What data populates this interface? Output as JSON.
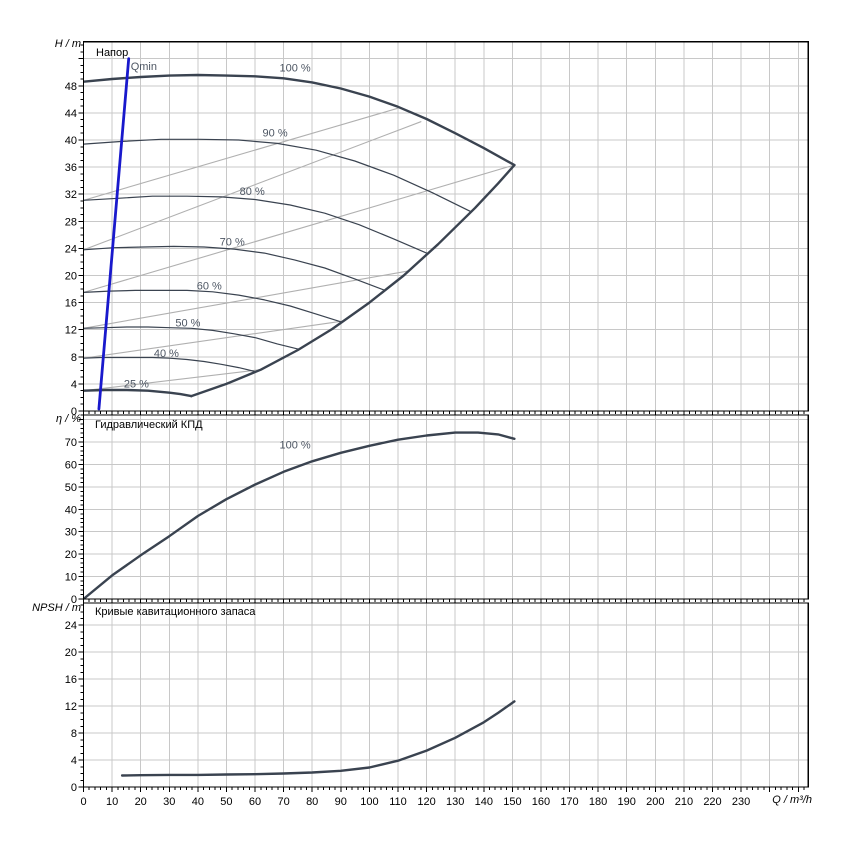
{
  "colors": {
    "curve": "#3a4350",
    "grid": "#c8c8c8",
    "iso_line": "#b0b0b0",
    "qmin": "#1919cc",
    "axis": "#000000",
    "label_text": "#4d5663"
  },
  "axes": {
    "x": {
      "label": "Q / m³/h",
      "ticks": [
        0,
        10,
        20,
        30,
        40,
        50,
        60,
        70,
        80,
        90,
        100,
        110,
        120,
        130,
        140,
        150,
        160,
        170,
        180,
        190,
        200,
        210,
        220,
        230
      ],
      "minor_step": 2
    },
    "head_y": {
      "label": "H / m",
      "ticks": [
        0,
        4,
        8,
        12,
        16,
        20,
        24,
        28,
        32,
        36,
        40,
        44,
        48
      ],
      "minor_step": 1
    },
    "eff_y": {
      "label": "η / %",
      "ticks": [
        0,
        10,
        20,
        30,
        40,
        50,
        60,
        70
      ],
      "minor_step": 2
    },
    "npsh_y": {
      "label": "NPSH / m",
      "ticks": [
        0,
        4,
        8,
        12,
        16,
        20,
        24
      ],
      "minor_step": 1
    }
  },
  "panels": {
    "head": {
      "title": "Напор"
    },
    "eff": {
      "title": "Гидравлический КПД"
    },
    "npsh": {
      "title": "Кривые кавитационного запаса"
    }
  },
  "chart_data": [
    {
      "type": "line",
      "title": "Напор",
      "xlabel": "Q / m³/h",
      "ylabel": "H / m",
      "xlim": [
        0,
        253.5
      ],
      "ylim": [
        0,
        54.5
      ],
      "grid": true,
      "series": [
        {
          "name": null,
          "role": "iso_efficiency_line",
          "points": [
            [
              0,
              31.1
            ],
            [
              110,
              44.7
            ]
          ]
        },
        {
          "name": null,
          "role": "iso_efficiency_line",
          "points": [
            [
              0,
              23.8
            ],
            [
              118,
              42.7
            ]
          ]
        },
        {
          "name": null,
          "role": "iso_efficiency_line",
          "points": [
            [
              0,
              17.5
            ],
            [
              150.6,
              36.3
            ]
          ]
        },
        {
          "name": null,
          "role": "iso_efficiency_line",
          "points": [
            [
              0,
              12.2
            ],
            [
              113.9,
              20.7
            ]
          ]
        },
        {
          "name": null,
          "role": "iso_efficiency_line",
          "points": [
            [
              0,
              7.8
            ],
            [
              91,
              13.3
            ]
          ]
        },
        {
          "name": null,
          "role": "iso_efficiency_line",
          "points": [
            [
              0,
              3.0
            ],
            [
              61.7,
              6.1
            ]
          ]
        },
        {
          "name": "100 %",
          "role": "speed_curve",
          "thick": true,
          "label_at": [
            74,
            50.1
          ],
          "points": [
            [
              0,
              48.6
            ],
            [
              10,
              49.0
            ],
            [
              20,
              49.3
            ],
            [
              30,
              49.5
            ],
            [
              40,
              49.6
            ],
            [
              50,
              49.5
            ],
            [
              60,
              49.4
            ],
            [
              70,
              49.1
            ],
            [
              80,
              48.5
            ],
            [
              90,
              47.6
            ],
            [
              100,
              46.4
            ],
            [
              110,
              44.9
            ],
            [
              120,
              43.1
            ],
            [
              130,
              41.0
            ],
            [
              140,
              38.8
            ],
            [
              150.7,
              36.3
            ]
          ]
        },
        {
          "name": "90 %",
          "role": "speed_curve",
          "label_at": [
            67,
            40.5
          ],
          "points": [
            [
              0,
              39.4
            ],
            [
              13.6,
              39.8
            ],
            [
              27.1,
              40.1
            ],
            [
              40.7,
              40.1
            ],
            [
              54.3,
              40.0
            ],
            [
              67.8,
              39.5
            ],
            [
              81.4,
              38.5
            ],
            [
              94.9,
              36.9
            ],
            [
              108.5,
              34.8
            ],
            [
              122.1,
              32.2
            ],
            [
              135.6,
              29.4
            ]
          ]
        },
        {
          "name": "80 %",
          "role": "speed_curve",
          "label_at": [
            59,
            31.9
          ],
          "points": [
            [
              0,
              31.1
            ],
            [
              12.1,
              31.4
            ],
            [
              24.1,
              31.7
            ],
            [
              36.2,
              31.7
            ],
            [
              48.2,
              31.6
            ],
            [
              60.3,
              31.2
            ],
            [
              72.3,
              30.4
            ],
            [
              84.4,
              29.2
            ],
            [
              96.4,
              27.5
            ],
            [
              108.5,
              25.4
            ],
            [
              120.6,
              23.2
            ]
          ]
        },
        {
          "name": "70 %",
          "role": "speed_curve",
          "label_at": [
            52,
            24.4
          ],
          "points": [
            [
              0,
              23.8
            ],
            [
              10.5,
              24.1
            ],
            [
              21.1,
              24.2
            ],
            [
              31.6,
              24.3
            ],
            [
              42.2,
              24.2
            ],
            [
              52.7,
              23.9
            ],
            [
              63.3,
              23.3
            ],
            [
              73.8,
              22.3
            ],
            [
              84.4,
              21.1
            ],
            [
              94.9,
              19.5
            ],
            [
              105.5,
              17.8
            ]
          ]
        },
        {
          "name": "60 %",
          "role": "speed_curve",
          "label_at": [
            44,
            17.9
          ],
          "points": [
            [
              0,
              17.5
            ],
            [
              9,
              17.7
            ],
            [
              18.1,
              17.8
            ],
            [
              27.1,
              17.8
            ],
            [
              36.2,
              17.8
            ],
            [
              45.2,
              17.6
            ],
            [
              54.3,
              17.1
            ],
            [
              63.3,
              16.4
            ],
            [
              72.3,
              15.5
            ],
            [
              81.4,
              14.3
            ],
            [
              90.4,
              13.1
            ]
          ]
        },
        {
          "name": "50 %",
          "role": "speed_curve",
          "label_at": [
            36.5,
            12.5
          ],
          "points": [
            [
              0,
              12.2
            ],
            [
              7.5,
              12.3
            ],
            [
              15.1,
              12.4
            ],
            [
              22.6,
              12.4
            ],
            [
              30.1,
              12.3
            ],
            [
              37.7,
              12.2
            ],
            [
              45.2,
              11.9
            ],
            [
              52.7,
              11.4
            ],
            [
              60.3,
              10.8
            ],
            [
              67.8,
              9.9
            ],
            [
              75.4,
              9.1
            ]
          ]
        },
        {
          "name": "40 %",
          "role": "speed_curve",
          "label_at": [
            29,
            8.0
          ],
          "points": [
            [
              0,
              7.8
            ],
            [
              6,
              7.9
            ],
            [
              12.1,
              7.9
            ],
            [
              18.1,
              7.9
            ],
            [
              24.1,
              7.9
            ],
            [
              30.1,
              7.8
            ],
            [
              36.2,
              7.6
            ],
            [
              42.2,
              7.3
            ],
            [
              48.2,
              6.9
            ],
            [
              54.3,
              6.4
            ],
            [
              60.3,
              5.8
            ]
          ]
        },
        {
          "name": "25 %",
          "role": "speed_curve",
          "thick": true,
          "label_at": [
            18.5,
            3.5
          ],
          "points": [
            [
              0,
              3.0
            ],
            [
              7.5,
              3.1
            ],
            [
              15.1,
              3.1
            ],
            [
              22.6,
              3.0
            ],
            [
              30.1,
              2.7
            ],
            [
              33.9,
              2.5
            ],
            [
              37.7,
              2.2
            ]
          ]
        },
        {
          "name": null,
          "role": "envelope",
          "thick": true,
          "points": [
            [
              37.7,
              2.2
            ],
            [
              50,
              4.0
            ],
            [
              62,
              6.1
            ],
            [
              75,
              9.0
            ],
            [
              87,
              12.1
            ],
            [
              100,
              16.0
            ],
            [
              112,
              20.0
            ],
            [
              124,
              24.6
            ],
            [
              137,
              30.0
            ],
            [
              145,
              33.6
            ],
            [
              150.7,
              36.3
            ]
          ]
        },
        {
          "name": "Qmin",
          "role": "min_flow_limit",
          "label_at": [
            16.5,
            50.3
          ],
          "label_anchor": "start",
          "points": [
            [
              15.8,
              52.0
            ],
            [
              5.4,
              0.3
            ]
          ]
        }
      ]
    },
    {
      "type": "line",
      "title": "Гидравлический КПД",
      "xlabel": "Q / m³/h",
      "ylabel": "η / %",
      "xlim": [
        0,
        253.5
      ],
      "ylim": [
        0,
        82
      ],
      "grid": true,
      "series": [
        {
          "name": "100 %",
          "role": "efficiency_curve",
          "thick": true,
          "label_at": [
            74,
            67
          ],
          "points": [
            [
              0,
              0
            ],
            [
              10,
              10.5
            ],
            [
              20,
              19.5
            ],
            [
              30,
              28
            ],
            [
              40,
              37
            ],
            [
              50,
              44.5
            ],
            [
              60,
              51
            ],
            [
              70,
              56.7
            ],
            [
              80,
              61.4
            ],
            [
              90,
              65.2
            ],
            [
              100,
              68.3
            ],
            [
              110,
              71
            ],
            [
              120,
              72.9
            ],
            [
              130,
              74.2
            ],
            [
              138,
              74.2
            ],
            [
              145,
              73.4
            ],
            [
              150.7,
              71.4
            ]
          ]
        }
      ]
    },
    {
      "type": "line",
      "title": "Кривые кавитационного запаса",
      "xlabel": "Q / m³/h",
      "ylabel": "NPSH / m",
      "xlim": [
        0,
        253.5
      ],
      "ylim": [
        0,
        27.3
      ],
      "grid": true,
      "series": [
        {
          "name": "NPSH",
          "role": "npsh_curve",
          "thick": true,
          "points": [
            [
              13.5,
              1.7
            ],
            [
              20,
              1.75
            ],
            [
              30,
              1.8
            ],
            [
              40,
              1.8
            ],
            [
              50,
              1.85
            ],
            [
              60,
              1.9
            ],
            [
              70,
              2.0
            ],
            [
              80,
              2.15
            ],
            [
              90,
              2.4
            ],
            [
              100,
              2.9
            ],
            [
              110,
              3.9
            ],
            [
              120,
              5.4
            ],
            [
              130,
              7.3
            ],
            [
              140,
              9.6
            ],
            [
              145,
              11.0
            ],
            [
              150.7,
              12.7
            ]
          ]
        }
      ]
    }
  ]
}
